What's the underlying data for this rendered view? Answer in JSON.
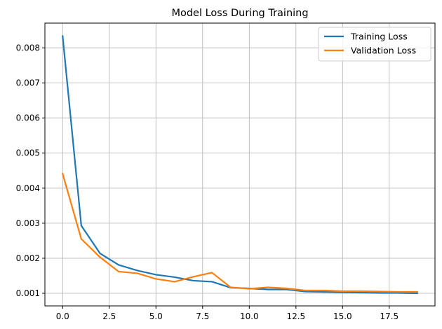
{
  "chart_data": {
    "type": "line",
    "title": "Model Loss During Training",
    "xlabel": "",
    "ylabel": "",
    "xlim": [
      -0.95,
      19.95
    ],
    "ylim": [
      0.00064,
      0.00871
    ],
    "xticks": [
      0,
      2.5,
      5,
      7.5,
      10,
      12.5,
      15,
      17.5
    ],
    "xtick_labels": [
      "0.0",
      "2.5",
      "5.0",
      "7.5",
      "10.0",
      "12.5",
      "15.0",
      "17.5"
    ],
    "yticks": [
      0.001,
      0.002,
      0.003,
      0.004,
      0.005,
      0.006,
      0.007,
      0.008
    ],
    "ytick_labels": [
      "0.001",
      "0.002",
      "0.003",
      "0.004",
      "0.005",
      "0.006",
      "0.007",
      "0.008"
    ],
    "grid": true,
    "legend_position": "top-right",
    "x": [
      0,
      1,
      2,
      3,
      4,
      5,
      6,
      7,
      8,
      9,
      10,
      11,
      12,
      13,
      14,
      15,
      16,
      17,
      18,
      19
    ],
    "series": [
      {
        "name": "Training Loss",
        "color": "#1f77b4",
        "values": [
          0.00834,
          0.00293,
          0.00214,
          0.00181,
          0.00165,
          0.00153,
          0.00146,
          0.00136,
          0.00133,
          0.00116,
          0.00114,
          0.00111,
          0.00111,
          0.00105,
          0.00104,
          0.00103,
          0.00102,
          0.00101,
          0.00101,
          0.001
        ]
      },
      {
        "name": "Validation Loss",
        "color": "#ff7f0e",
        "values": [
          0.00441,
          0.00255,
          0.00203,
          0.00162,
          0.00157,
          0.00141,
          0.00133,
          0.00147,
          0.00159,
          0.00117,
          0.00113,
          0.00117,
          0.00114,
          0.00108,
          0.00108,
          0.00106,
          0.00106,
          0.00105,
          0.00104,
          0.00104
        ]
      }
    ]
  }
}
